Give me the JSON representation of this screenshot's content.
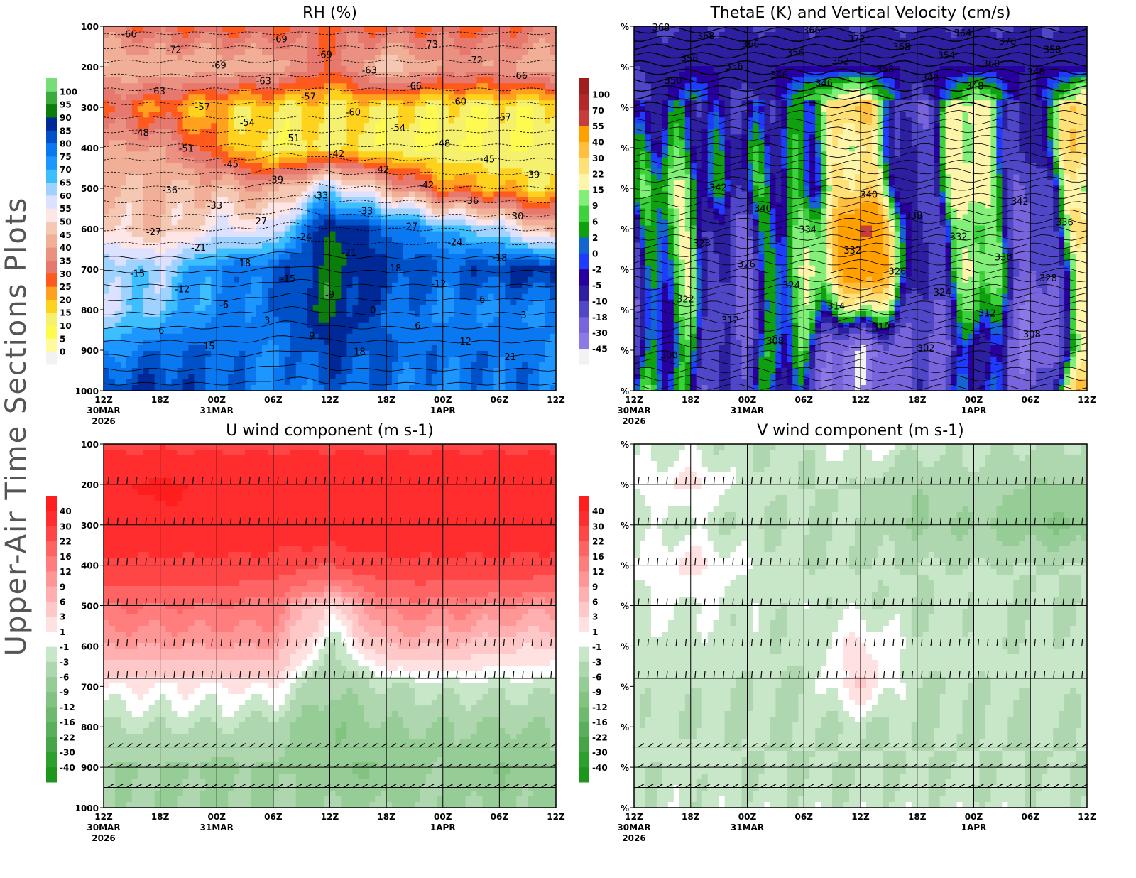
{
  "side_title": "Upper-Air Time Sections Plots",
  "x_ticks": [
    "12Z",
    "18Z",
    "00Z",
    "06Z",
    "12Z",
    "18Z",
    "00Z",
    "06Z",
    "12Z"
  ],
  "x_date_labels": [
    {
      "tick": 0,
      "lines": [
        "30MAR",
        "2026"
      ]
    },
    {
      "tick": 2,
      "lines": [
        "31MAR"
      ]
    },
    {
      "tick": 6,
      "lines": [
        "1APR"
      ]
    }
  ],
  "pressure_levels": [
    100,
    200,
    300,
    400,
    500,
    600,
    700,
    800,
    900,
    1000
  ],
  "right_axis_label": "%",
  "chart_data": [
    {
      "id": "rh",
      "type": "heatmap",
      "title": "RH (%)",
      "y_labels_shown": true,
      "ylim": [
        100,
        1000
      ],
      "y_reversed": true,
      "colorbar": {
        "levels": [
          0,
          5,
          10,
          15,
          20,
          25,
          30,
          35,
          40,
          45,
          50,
          55,
          60,
          65,
          70,
          75,
          80,
          85,
          90,
          95,
          100
        ],
        "colors": [
          "#f2f2f2",
          "#fffaa0",
          "#fffa50",
          "#f5f06e",
          "#ffd21e",
          "#ffa01e",
          "#ff5a1e",
          "#e6786e",
          "#eb9182",
          "#f0af96",
          "#f5c8b4",
          "#ffe6e6",
          "#dce1ff",
          "#a0d2ff",
          "#3cbeff",
          "#1e96ff",
          "#0a78f0",
          "#0050c8",
          "#002896",
          "#0a7d0a",
          "#3caa3c",
          "#78dc78"
        ]
      },
      "values": [
        [
          35,
          30,
          30,
          30,
          30,
          30,
          30,
          30,
          35
        ],
        [
          45,
          45,
          45,
          45,
          30,
          50,
          40,
          40,
          45
        ],
        [
          30,
          25,
          18,
          15,
          15,
          15,
          12,
          12,
          12
        ],
        [
          40,
          40,
          25,
          10,
          15,
          10,
          10,
          10,
          10
        ],
        [
          45,
          45,
          45,
          40,
          62,
          45,
          25,
          20,
          15
        ],
        [
          50,
          45,
          55,
          55,
          92,
          80,
          70,
          60,
          40
        ],
        [
          65,
          62,
          75,
          80,
          92,
          85,
          80,
          85,
          90
        ],
        [
          60,
          65,
          75,
          78,
          92,
          80,
          75,
          75,
          75
        ],
        [
          72,
          80,
          80,
          75,
          85,
          80,
          78,
          78,
          75
        ],
        [
          85,
          85,
          80,
          75,
          80,
          78,
          75,
          78,
          78
        ]
      ],
      "contour_labels": [
        "-66",
        "-69",
        "-73",
        "-72",
        "-69",
        "-72",
        "-69",
        "-63",
        "-66",
        "-63",
        "-66",
        "-63",
        "-57",
        "-60",
        "-57",
        "-60",
        "-57",
        "-54",
        "-54",
        "-48",
        "-51",
        "-48",
        "-51",
        "-42",
        "-45",
        "-45",
        "-42",
        "-39",
        "-39",
        "-42",
        "-36",
        "-33",
        "-36",
        "-33",
        "-33",
        "-30",
        "-27",
        "-27",
        "-27",
        "-24",
        "-24",
        "-21",
        "-21",
        "-18",
        "-18",
        "-18",
        "-15",
        "-15",
        "-12",
        "-12",
        "-9",
        "-6",
        "-6",
        "0",
        "3",
        "3",
        "6",
        "6",
        "9",
        "12",
        "15",
        "18",
        "21"
      ]
    },
    {
      "id": "thetae",
      "type": "heatmap",
      "title": "ThetaE (K) and Vertical Velocity (cm/s)",
      "y_labels_shown": false,
      "ylim": [
        100,
        1000
      ],
      "y_reversed": true,
      "colorbar": {
        "levels": [
          -45,
          -30,
          -18,
          -10,
          -5,
          -2,
          0,
          2,
          6,
          9,
          15,
          22,
          30,
          40,
          55,
          70,
          100
        ],
        "colors": [
          "#f2f2f2",
          "#8c78e6",
          "#7864dc",
          "#5046c8",
          "#2d20a0",
          "#2800a0",
          "#1e3cff",
          "#1464d2",
          "#0fa00f",
          "#3cd23c",
          "#82f078",
          "#fff5aa",
          "#ffe178",
          "#ffbe3c",
          "#ffa000",
          "#c83c3c",
          "#b42828",
          "#a01e1e"
        ]
      },
      "values": [
        [
          -10,
          -10,
          -10,
          -10,
          -10,
          -10,
          -10,
          -10,
          -10
        ],
        [
          -10,
          -5,
          -5,
          -5,
          -5,
          -5,
          -5,
          -5,
          -5
        ],
        [
          -18,
          6,
          -18,
          9,
          30,
          -18,
          20,
          -10,
          30
        ],
        [
          -10,
          9,
          -10,
          9,
          15,
          -10,
          15,
          -10,
          30
        ],
        [
          -5,
          15,
          -10,
          6,
          25,
          -10,
          20,
          -18,
          15
        ],
        [
          -10,
          9,
          -18,
          9,
          60,
          -10,
          9,
          -18,
          20
        ],
        [
          -10,
          6,
          -18,
          9,
          60,
          -10,
          15,
          -18,
          9
        ],
        [
          -10,
          2,
          -18,
          6,
          20,
          -18,
          9,
          -30,
          15
        ],
        [
          -5,
          -5,
          -10,
          2,
          -45,
          -18,
          -5,
          -30,
          9
        ],
        [
          2,
          -5,
          -10,
          -5,
          -45,
          -10,
          -5,
          -18,
          30
        ]
      ],
      "contour_labels": [
        "368",
        "366",
        "364",
        "368",
        "372",
        "370",
        "366",
        "368",
        "358",
        "356",
        "354",
        "358",
        "362",
        "360",
        "356",
        "358",
        "348",
        "346",
        "348",
        "350",
        "346",
        "348",
        "342",
        "340",
        "342",
        "340",
        "338",
        "336",
        "334",
        "332",
        "328",
        "332",
        "330",
        "326",
        "326",
        "328",
        "324",
        "324",
        "322",
        "314",
        "312",
        "312",
        "310",
        "308",
        "308",
        "302",
        "300"
      ]
    },
    {
      "id": "u",
      "type": "heatmap",
      "title": "U wind component (m s-1)",
      "y_labels_shown": true,
      "ylim": [
        100,
        1000
      ],
      "y_reversed": true,
      "colorbar": {
        "levels": [
          -40,
          -30,
          -22,
          -16,
          -12,
          -9,
          -6,
          -3,
          -1,
          1,
          3,
          6,
          9,
          12,
          16,
          22,
          30,
          40
        ],
        "colors": [
          "#1e961e",
          "#2d9f2d",
          "#46a546",
          "#5aaf5a",
          "#6eb96e",
          "#82c382",
          "#96cd96",
          "#afd7af",
          "#c8e6c8",
          "#ffffff",
          "#ffe1e1",
          "#ffc8c8",
          "#ffafaf",
          "#ff9696",
          "#ff7d7d",
          "#ff6464",
          "#ff4646",
          "#ff2d2d",
          "#ff1e1e"
        ]
      },
      "values": [
        [
          28,
          28,
          28,
          28,
          28,
          28,
          28,
          28,
          28
        ],
        [
          38,
          42,
          38,
          38,
          38,
          38,
          38,
          38,
          38
        ],
        [
          38,
          38,
          38,
          38,
          38,
          38,
          38,
          38,
          38
        ],
        [
          28,
          28,
          28,
          26,
          22,
          28,
          28,
          28,
          26
        ],
        [
          16,
          16,
          16,
          14,
          2,
          14,
          14,
          12,
          10
        ],
        [
          9,
          9,
          9,
          9,
          -3,
          6,
          6,
          4,
          3
        ],
        [
          1,
          1,
          1,
          1,
          -6,
          -3,
          -2,
          -2,
          -2
        ],
        [
          -3,
          -3,
          -3,
          -4,
          -9,
          -6,
          -6,
          -6,
          -6
        ],
        [
          -6,
          -6,
          -7,
          -6,
          -9,
          -9,
          -6,
          -9,
          -6
        ],
        [
          -5,
          -6,
          -6,
          -6,
          -6,
          -6,
          -6,
          -7,
          -6
        ]
      ]
    },
    {
      "id": "v",
      "type": "heatmap",
      "title": "V wind component (m s-1)",
      "y_labels_shown": false,
      "ylim": [
        100,
        1000
      ],
      "y_reversed": true,
      "colorbar": {
        "levels": [
          -40,
          -30,
          -22,
          -16,
          -12,
          -9,
          -6,
          -3,
          -1,
          1,
          3,
          6,
          9,
          12,
          16,
          22,
          30,
          40
        ],
        "colors": [
          "#1e961e",
          "#2d9f2d",
          "#46a546",
          "#5aaf5a",
          "#6eb96e",
          "#82c382",
          "#96cd96",
          "#afd7af",
          "#c8e6c8",
          "#ffffff",
          "#ffe1e1",
          "#ffc8c8",
          "#ffafaf",
          "#ff9696",
          "#ff7d7d",
          "#ff6464",
          "#ff4646",
          "#ff2d2d",
          "#ff1e1e"
        ]
      },
      "values": [
        [
          -2,
          -2,
          -3,
          -2,
          0,
          -2,
          -2,
          -3,
          -3
        ],
        [
          -1,
          2,
          -2,
          -3,
          -3,
          -6,
          -4,
          -6,
          -6
        ],
        [
          -2,
          -2,
          -3,
          -3,
          -3,
          -6,
          -6,
          -9,
          -9
        ],
        [
          -1,
          2,
          -1,
          -3,
          -3,
          -3,
          -3,
          -3,
          -3
        ],
        [
          -1,
          -1,
          -2,
          -2,
          -2,
          -3,
          -2,
          -3,
          -3
        ],
        [
          -2,
          -2,
          -2,
          -3,
          2,
          -2,
          -2,
          -3,
          -2
        ],
        [
          -2,
          -2,
          -3,
          -3,
          3,
          -3,
          -3,
          -2,
          -2
        ],
        [
          -2,
          -3,
          -3,
          -3,
          -3,
          -3,
          -3,
          -3,
          -3
        ],
        [
          -3,
          -2,
          -3,
          -3,
          -3,
          -3,
          -3,
          -3,
          -3
        ],
        [
          -2,
          -2,
          -2,
          -2,
          -2,
          -2,
          -2,
          -2,
          -2
        ]
      ]
    }
  ]
}
